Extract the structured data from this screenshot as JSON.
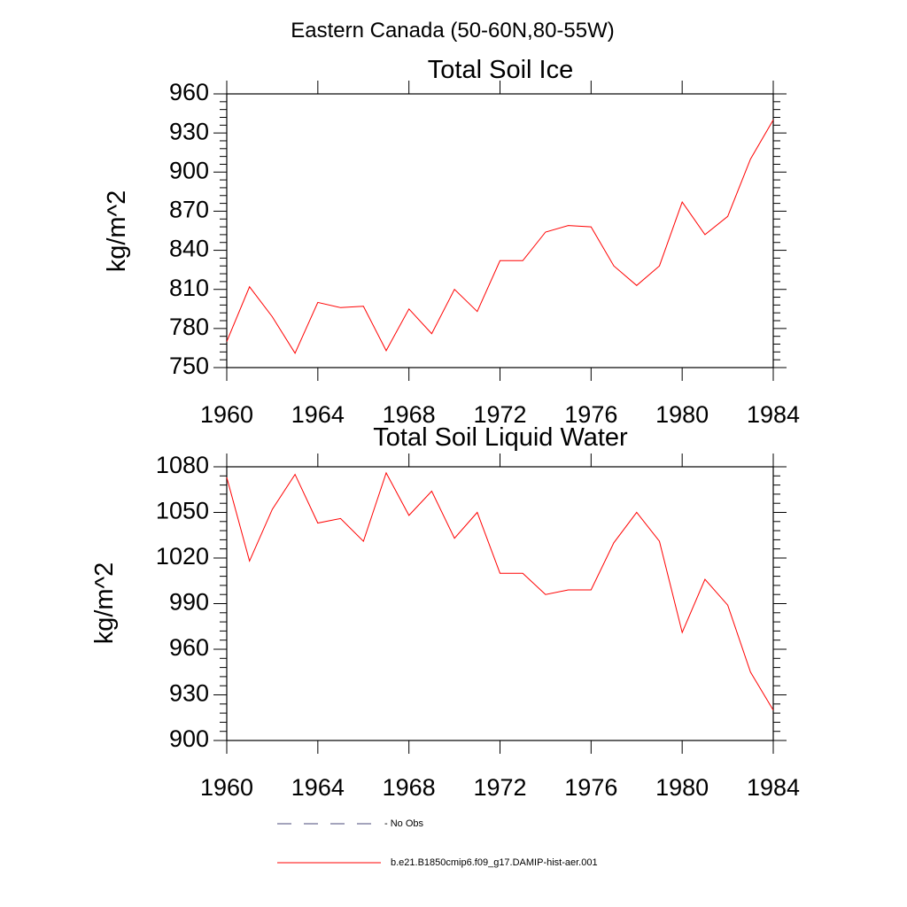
{
  "title": "Eastern Canada (50-60N,80-55W)",
  "colors": {
    "model": "#ff0000",
    "obs": "#4a4a7a"
  },
  "legend": [
    {
      "label": "- No Obs",
      "style": "dashed",
      "color": "#4a4a7a"
    },
    {
      "label": "b.e21.B1850cmip6.f09_g17.DAMIP-hist-aer.001",
      "style": "solid",
      "color": "#ff0000"
    }
  ],
  "chart_data": [
    {
      "type": "line",
      "title": "Total Soil Ice",
      "xlabel": "",
      "ylabel": "kg/m^2",
      "xlim": [
        1960,
        1984
      ],
      "ylim": [
        750,
        960
      ],
      "xticks": [
        1960,
        1964,
        1968,
        1972,
        1976,
        1980,
        1984
      ],
      "yticks": [
        750,
        780,
        810,
        840,
        870,
        900,
        930,
        960
      ],
      "yticks_minor": 5,
      "grid": false,
      "x": [
        1960,
        1961,
        1962,
        1963,
        1964,
        1965,
        1966,
        1967,
        1968,
        1969,
        1970,
        1971,
        1972,
        1973,
        1974,
        1975,
        1976,
        1977,
        1978,
        1979,
        1980,
        1981,
        1982,
        1983,
        1984
      ],
      "series": [
        {
          "name": "b.e21.B1850cmip6.f09_g17.DAMIP-hist-aer.001",
          "color": "#ff0000",
          "values": [
            770,
            812,
            789,
            761,
            800,
            796,
            797,
            763,
            795,
            776,
            810,
            793,
            832,
            832,
            854,
            859,
            858,
            828,
            813,
            828,
            877,
            852,
            866,
            910,
            940
          ]
        }
      ]
    },
    {
      "type": "line",
      "title": "Total Soil Liquid Water",
      "xlabel": "",
      "ylabel": "kg/m^2",
      "xlim": [
        1960,
        1984
      ],
      "ylim": [
        900,
        1080
      ],
      "xticks": [
        1960,
        1964,
        1968,
        1972,
        1976,
        1980,
        1984
      ],
      "yticks": [
        900,
        930,
        960,
        990,
        1020,
        1050,
        1080
      ],
      "yticks_minor": 5,
      "grid": false,
      "x": [
        1960,
        1961,
        1962,
        1963,
        1964,
        1965,
        1966,
        1967,
        1968,
        1969,
        1970,
        1971,
        1972,
        1973,
        1974,
        1975,
        1976,
        1977,
        1978,
        1979,
        1980,
        1981,
        1982,
        1983,
        1984
      ],
      "series": [
        {
          "name": "b.e21.B1850cmip6.f09_g17.DAMIP-hist-aer.001",
          "color": "#ff0000",
          "values": [
            1073,
            1018,
            1052,
            1075,
            1043,
            1046,
            1031,
            1076,
            1048,
            1064,
            1033,
            1050,
            1010,
            1010,
            996,
            999,
            999,
            1030,
            1050,
            1031,
            971,
            1006,
            989,
            945,
            920
          ]
        }
      ]
    }
  ]
}
